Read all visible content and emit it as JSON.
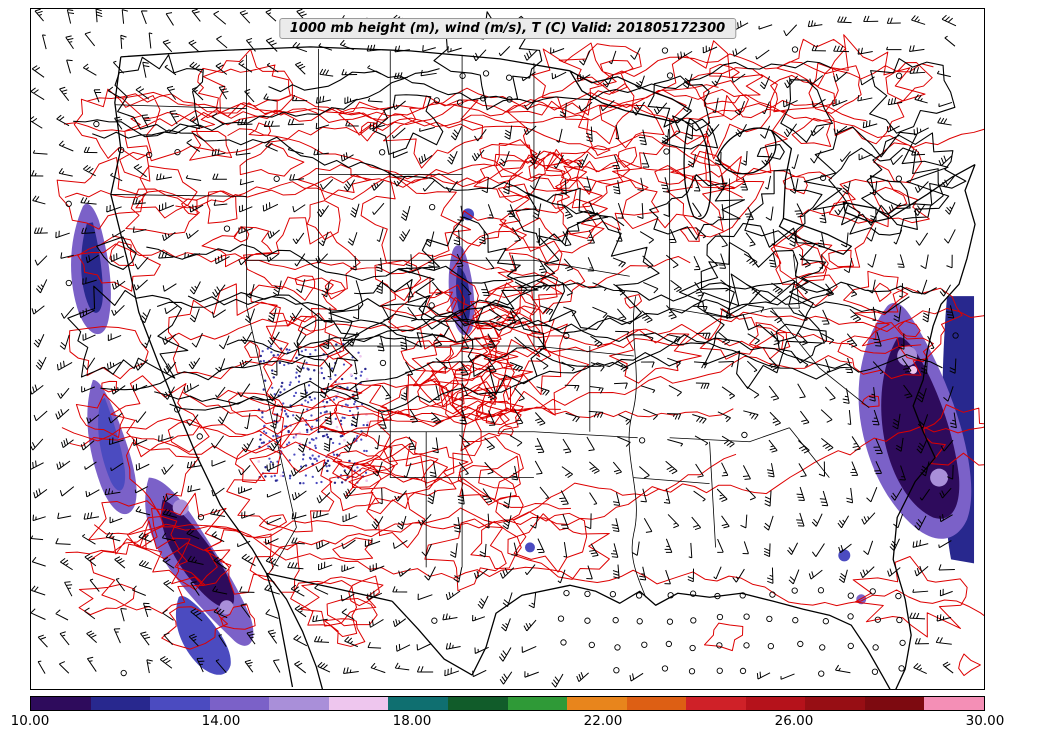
{
  "title": "1000 mb height (m), wind (m/s), T (C) Valid: 201805172300",
  "colorbar": {
    "min": 10,
    "max": 30,
    "units": "C",
    "ticks": [
      "10.00",
      "14.00",
      "18.00",
      "22.00",
      "26.00",
      "30.00"
    ],
    "segments": [
      {
        "from": 10.0,
        "to": 11.25,
        "color": "#2e0b5c"
      },
      {
        "from": 11.25,
        "to": 12.5,
        "color": "#28288e"
      },
      {
        "from": 12.5,
        "to": 13.75,
        "color": "#4b4bc0"
      },
      {
        "from": 13.75,
        "to": 15.0,
        "color": "#7b61c8"
      },
      {
        "from": 15.0,
        "to": 16.25,
        "color": "#a98fd9"
      },
      {
        "from": 16.25,
        "to": 17.5,
        "color": "#eec6ee"
      },
      {
        "from": 17.5,
        "to": 18.75,
        "color": "#0f6f70"
      },
      {
        "from": 18.75,
        "to": 20.0,
        "color": "#115c2a"
      },
      {
        "from": 20.0,
        "to": 21.25,
        "color": "#2f9a37"
      },
      {
        "from": 21.25,
        "to": 22.5,
        "color": "#e8851c"
      },
      {
        "from": 22.5,
        "to": 23.75,
        "color": "#dd5f14"
      },
      {
        "from": 23.75,
        "to": 25.0,
        "color": "#cf2128"
      },
      {
        "from": 25.0,
        "to": 26.25,
        "color": "#b5121b"
      },
      {
        "from": 26.25,
        "to": 27.5,
        "color": "#970e14"
      },
      {
        "from": 27.5,
        "to": 28.75,
        "color": "#7d0a10"
      },
      {
        "from": 28.75,
        "to": 30.0,
        "color": "#f48fb6"
      }
    ]
  },
  "map": {
    "region": "Continental United States",
    "temperature_contour_color": "#dd0000",
    "height_contour_color": "#000000",
    "geography_color": "#000000",
    "wind_barb_color": "#000000",
    "cold_shading_colors": [
      "#2e0b5c",
      "#28288e",
      "#4b4bc0",
      "#7b61c8",
      "#a98fd9",
      "#eec6ee"
    ]
  },
  "chart_data": {
    "type": "map",
    "title": "1000 mb height (m), wind (m/s), T (C) Valid: 201805172300",
    "level": "1000 mb",
    "valid_time": "201805172300",
    "region": "Continental United States",
    "fields": [
      {
        "name": "geopotential height",
        "units": "m",
        "rendering": "black contour lines"
      },
      {
        "name": "wind",
        "units": "m/s",
        "rendering": "black wind barbs; open circles (calm) concentrated over the Gulf of Mexico and southeast"
      },
      {
        "name": "temperature",
        "units": "C",
        "rendering": "red contour lines; cold air (below ~18 C) shaded purple/blue along the Pacific coast, southern California, central Rockies, northern plains and the Atlantic coast"
      }
    ],
    "colorbar_ticks": [
      10,
      14,
      18,
      22,
      26,
      30
    ],
    "colorbar_units": "C",
    "legend_position": "bottom horizontal colorbar",
    "grid": false
  }
}
